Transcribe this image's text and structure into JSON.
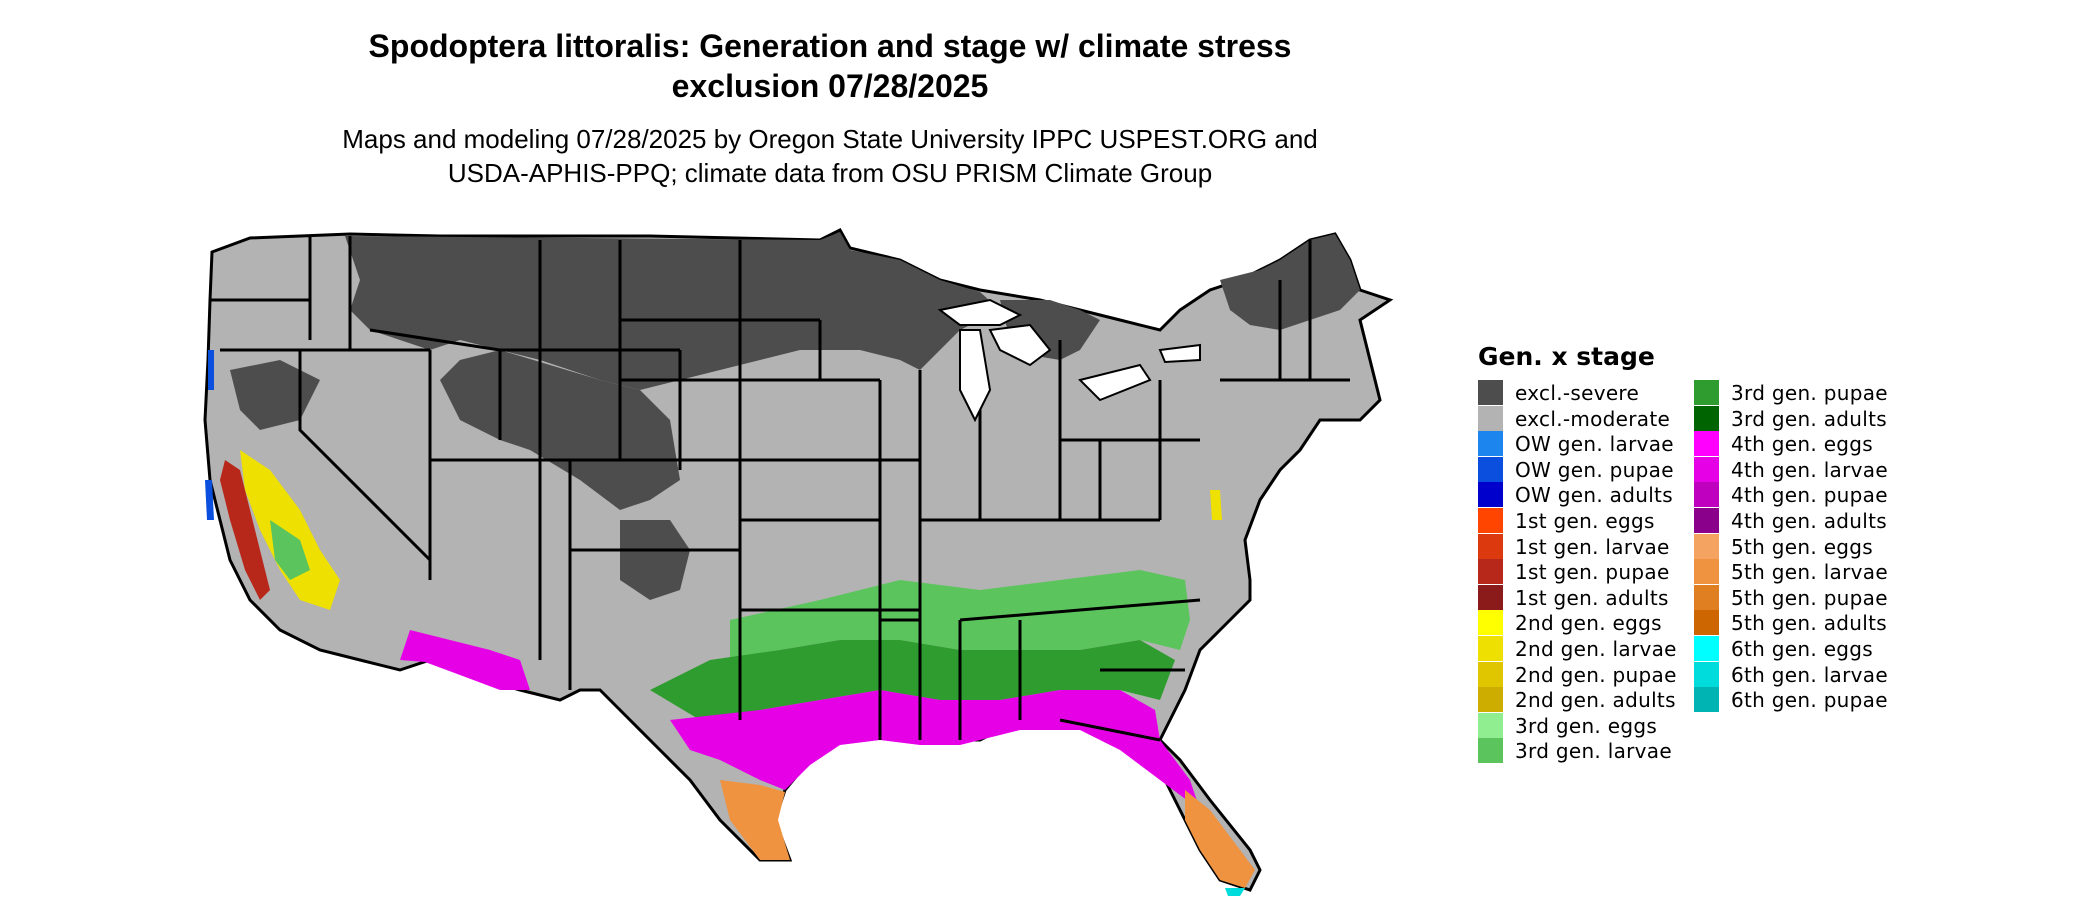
{
  "title": {
    "line1": "Spodoptera littoralis: Generation and stage w/ climate stress",
    "line2": "exclusion 07/28/2025"
  },
  "subtitle": {
    "line1": "Maps and modeling 07/28/2025 by Oregon State University IPPC USPEST.ORG and",
    "line2": "USDA-APHIS-PPQ; climate data from OSU PRISM Climate Group"
  },
  "legend": {
    "title": "Gen. x stage",
    "col1": [
      {
        "label": "excl.-severe",
        "color": "#4d4d4d"
      },
      {
        "label": "excl.-moderate",
        "color": "#b3b3b3"
      },
      {
        "label": "OW gen. larvae",
        "color": "#1c86ee"
      },
      {
        "label": "OW gen. pupae",
        "color": "#0a4fdd"
      },
      {
        "label": "OW gen. adults",
        "color": "#0000cd"
      },
      {
        "label": "1st gen. eggs",
        "color": "#ff4500"
      },
      {
        "label": "1st gen. larvae",
        "color": "#dc3a0e"
      },
      {
        "label": "1st gen. pupae",
        "color": "#b8281a"
      },
      {
        "label": "1st gen. adults",
        "color": "#8b1a1a"
      },
      {
        "label": "2nd gen. eggs",
        "color": "#ffff00"
      },
      {
        "label": "2nd gen. larvae",
        "color": "#eee000"
      },
      {
        "label": "2nd gen. pupae",
        "color": "#e0c600"
      },
      {
        "label": "2nd gen. adults",
        "color": "#cdad00"
      },
      {
        "label": "3rd gen. eggs",
        "color": "#90ee90"
      },
      {
        "label": "3rd gen. larvae",
        "color": "#5cc45c"
      }
    ],
    "col2": [
      {
        "label": "3rd gen. pupae",
        "color": "#2e9c2e"
      },
      {
        "label": "3rd gen. adults",
        "color": "#006400"
      },
      {
        "label": "4th gen. eggs",
        "color": "#ff00ff"
      },
      {
        "label": "4th gen. larvae",
        "color": "#e600e6"
      },
      {
        "label": "4th gen. pupae",
        "color": "#bf00bf"
      },
      {
        "label": "4th gen. adults",
        "color": "#8b008b"
      },
      {
        "label": "5th gen. eggs",
        "color": "#f4a460"
      },
      {
        "label": "5th gen. larvae",
        "color": "#ef9340"
      },
      {
        "label": "5th gen. pupae",
        "color": "#e07f22"
      },
      {
        "label": "5th gen. adults",
        "color": "#cd6600"
      },
      {
        "label": "6th gen. eggs",
        "color": "#00ffff"
      },
      {
        "label": "6th gen. larvae",
        "color": "#00dcdc"
      },
      {
        "label": "6th gen. pupae",
        "color": "#00b4b4"
      }
    ]
  }
}
